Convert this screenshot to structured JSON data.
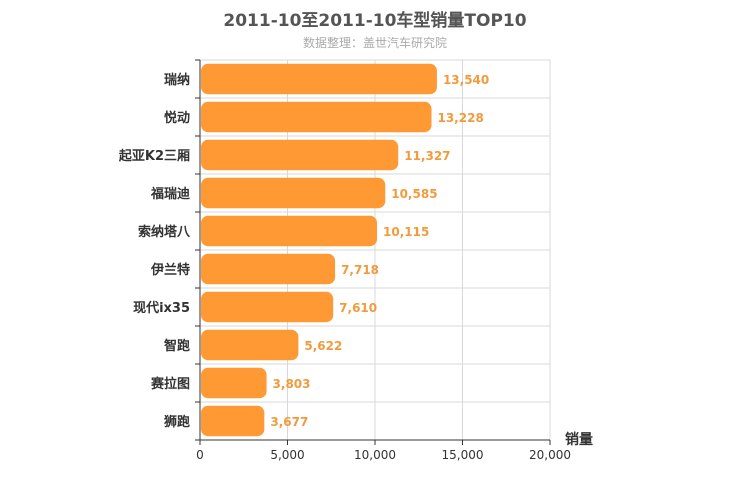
{
  "chart_data": {
    "type": "bar",
    "orientation": "horizontal",
    "title": "2011-10至2011-10车型销量TOP10",
    "subtitle": "数据整理：盖世汽车研究院",
    "xlabel": "销量",
    "ylabel": "",
    "xlim": [
      0,
      20000
    ],
    "xticks": [
      0,
      5000,
      10000,
      15000,
      20000
    ],
    "xtick_labels": [
      "0",
      "5,000",
      "10,000",
      "15,000",
      "20,000"
    ],
    "grid": true,
    "bar_color": "#ff9933",
    "label_color": "#f29b3c",
    "categories": [
      "瑞纳",
      "悦动",
      "起亚K2三厢",
      "福瑞迪",
      "索纳塔八",
      "伊兰特",
      "现代ix35",
      "智跑",
      "赛拉图",
      "狮跑"
    ],
    "values": [
      13540,
      13228,
      11327,
      10585,
      10115,
      7718,
      7610,
      5622,
      3803,
      3677
    ],
    "value_labels": [
      "13,540",
      "13,228",
      "11,327",
      "10,585",
      "10,115",
      "7,718",
      "7,610",
      "5,622",
      "3,803",
      "3,677"
    ]
  }
}
